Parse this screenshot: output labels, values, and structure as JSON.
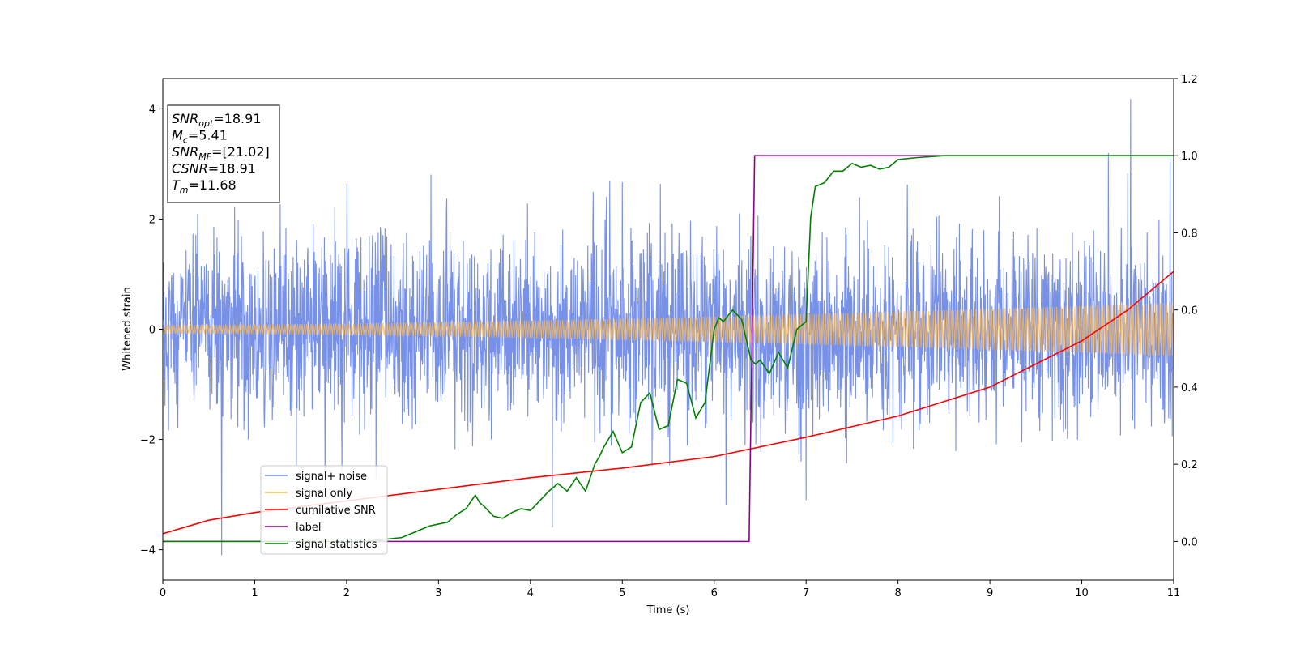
{
  "chart_data": {
    "type": "line",
    "xlabel": "Time (s)",
    "ylabel_left": "Whitened strain",
    "ylabel_right": "",
    "xlim": [
      0,
      11
    ],
    "ylim_left": [
      -4.55,
      4.55
    ],
    "ylim_right": [
      -0.1,
      1.2
    ],
    "x_ticks": [
      0,
      1,
      2,
      3,
      4,
      5,
      6,
      7,
      8,
      9,
      10,
      11
    ],
    "x_tick_labels": [
      "0",
      "1",
      "2",
      "3",
      "4",
      "5",
      "6",
      "7",
      "8",
      "9",
      "10",
      "11"
    ],
    "y_left_ticks": [
      -4,
      -2,
      0,
      2,
      4
    ],
    "y_left_tick_labels": [
      "−4",
      "−2",
      "0",
      "2",
      "4"
    ],
    "y_right_ticks": [
      0.0,
      0.2,
      0.4,
      0.6,
      0.8,
      1.0,
      1.2
    ],
    "y_right_tick_labels": [
      "0.0",
      "0.2",
      "0.4",
      "0.6",
      "0.8",
      "1.0",
      "1.2"
    ],
    "grid": false,
    "legend_position": "lower-left",
    "series": [
      {
        "name": "signal+ noise",
        "axis": "left",
        "color": "#6b87e6",
        "kind": "noise",
        "sample_rate_hz": 256,
        "sigma": 0.85,
        "clip": 2.9,
        "spikes": [
          {
            "x": 10.53,
            "y": 4.18
          },
          {
            "x": 0.64,
            "y": -4.1
          },
          {
            "x": 10.29,
            "y": 3.2
          },
          {
            "x": 10.96,
            "y": 3.1
          },
          {
            "x": 4.24,
            "y": -3.6
          },
          {
            "x": 6.13,
            "y": -3.2
          },
          {
            "x": 7.0,
            "y": -3.1
          }
        ]
      },
      {
        "name": "signal only",
        "axis": "left",
        "color": "#f5b85c",
        "kind": "chirp",
        "amplitude_start": 0.08,
        "amplitude_end": 0.48,
        "freq_start_hz": 20,
        "freq_end_hz": 40
      },
      {
        "name": "cumilative SNR",
        "axis": "right",
        "color": "#ff0000",
        "x": [
          0,
          0.5,
          1,
          2,
          3,
          4,
          5,
          6,
          6.5,
          7,
          8,
          9,
          10,
          10.5,
          11
        ],
        "y": [
          0.02,
          0.055,
          0.075,
          0.105,
          0.135,
          0.165,
          0.19,
          0.22,
          0.245,
          0.27,
          0.325,
          0.4,
          0.52,
          0.6,
          0.7
        ]
      },
      {
        "name": "label",
        "axis": "right",
        "color": "#8b008b",
        "x": [
          0,
          6.38,
          6.44,
          11
        ],
        "y": [
          0,
          0,
          1,
          1
        ]
      },
      {
        "name": "signal statistics",
        "axis": "right",
        "color": "#008000",
        "x": [
          0,
          0.5,
          1,
          1.5,
          2,
          2.2,
          2.4,
          2.6,
          2.7,
          2.8,
          2.9,
          3.0,
          3.1,
          3.2,
          3.3,
          3.4,
          3.45,
          3.5,
          3.6,
          3.7,
          3.8,
          3.9,
          4.0,
          4.1,
          4.2,
          4.3,
          4.4,
          4.5,
          4.6,
          4.7,
          4.75,
          4.8,
          4.9,
          5.0,
          5.1,
          5.2,
          5.3,
          5.4,
          5.5,
          5.6,
          5.7,
          5.8,
          5.9,
          6.0,
          6.05,
          6.1,
          6.2,
          6.3,
          6.4,
          6.45,
          6.5,
          6.6,
          6.7,
          6.8,
          6.9,
          7.0,
          7.05,
          7.1,
          7.2,
          7.3,
          7.4,
          7.5,
          7.6,
          7.7,
          7.8,
          7.9,
          8.0,
          8.2,
          8.5,
          9.0,
          10.0,
          11.0
        ],
        "y": [
          0.0,
          0.0,
          0.0,
          0.0,
          0.0,
          0.0,
          0.005,
          0.01,
          0.02,
          0.03,
          0.04,
          0.045,
          0.05,
          0.07,
          0.085,
          0.12,
          0.1,
          0.09,
          0.065,
          0.06,
          0.075,
          0.085,
          0.08,
          0.105,
          0.13,
          0.15,
          0.13,
          0.165,
          0.13,
          0.2,
          0.22,
          0.245,
          0.285,
          0.23,
          0.245,
          0.36,
          0.385,
          0.29,
          0.3,
          0.42,
          0.41,
          0.32,
          0.36,
          0.55,
          0.58,
          0.57,
          0.6,
          0.575,
          0.47,
          0.46,
          0.47,
          0.435,
          0.49,
          0.45,
          0.55,
          0.57,
          0.84,
          0.92,
          0.93,
          0.96,
          0.96,
          0.98,
          0.97,
          0.975,
          0.965,
          0.97,
          0.99,
          0.995,
          1.0,
          1.0,
          1.0,
          1.0
        ]
      }
    ],
    "annotation_box": {
      "lines": [
        {
          "main": "SNR",
          "sub": "opt",
          "value": "=18.91"
        },
        {
          "main": "M",
          "sub": "c",
          "value": "=5.41"
        },
        {
          "main": "SNR",
          "sub": "MF",
          "value": "=[21.02]"
        },
        {
          "main": "CSNR",
          "sub": "",
          "value": "=18.91"
        },
        {
          "main": "T",
          "sub": "m",
          "value": "=11.68"
        }
      ]
    }
  }
}
